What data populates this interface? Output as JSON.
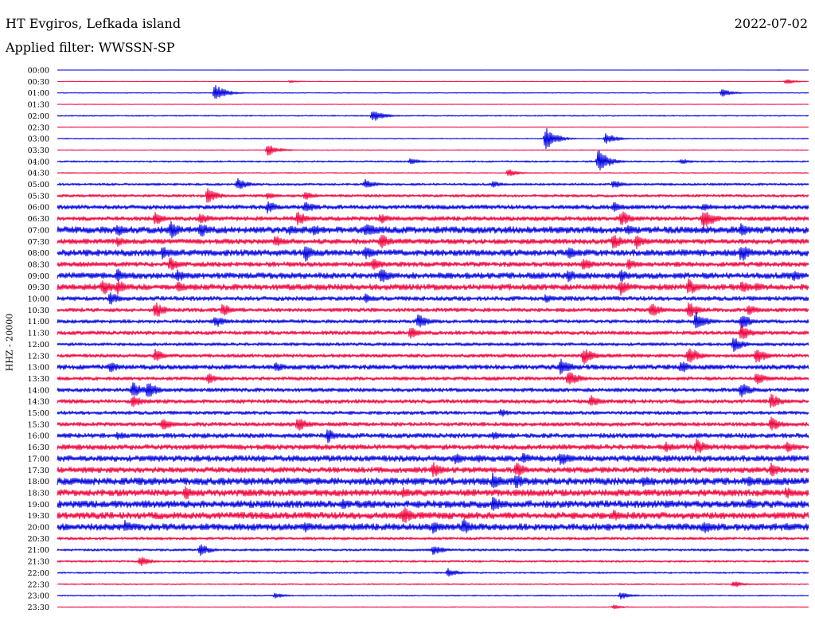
{
  "header": {
    "station": "HT Evgiros, Lefkada island",
    "date": "2022-07-02",
    "filter": "Applied filter: WWSSN-SP"
  },
  "chart_data": {
    "type": "line",
    "channel_label": "HHZ - 20000",
    "row_labels": [
      "00:00",
      "00:30",
      "01:00",
      "01:30",
      "02:00",
      "02:30",
      "03:00",
      "03:30",
      "04:00",
      "04:30",
      "05:00",
      "05:30",
      "06:00",
      "06:30",
      "07:00",
      "07:30",
      "08:00",
      "08:30",
      "09:00",
      "09:30",
      "10:00",
      "10:30",
      "11:00",
      "11:30",
      "12:00",
      "12:30",
      "13:00",
      "13:30",
      "14:00",
      "14:30",
      "15:00",
      "15:30",
      "16:00",
      "16:30",
      "17:00",
      "17:30",
      "18:00",
      "18:30",
      "19:00",
      "19:30",
      "20:00",
      "20:30",
      "21:00",
      "21:30",
      "22:00",
      "22:30",
      "23:00",
      "23:30"
    ],
    "colors": [
      "#0000e0",
      "#f0003c"
    ],
    "grid": false,
    "legend": "none",
    "noise_level": [
      0.2,
      0.2,
      0.4,
      0.2,
      0.6,
      0.3,
      0.5,
      0.4,
      0.8,
      0.5,
      1.2,
      1.4,
      2.2,
      2.2,
      3.4,
      2.6,
      3.2,
      2.4,
      3.0,
      3.0,
      2.2,
      2.0,
      1.8,
      2.0,
      1.6,
      1.8,
      2.4,
      1.8,
      2.0,
      2.0,
      1.8,
      2.0,
      2.4,
      2.6,
      3.0,
      2.8,
      3.6,
      3.4,
      3.6,
      3.4,
      3.4,
      1.4,
      1.2,
      1.0,
      0.8,
      0.6,
      0.6,
      0.4
    ],
    "events": [
      [
        [
          0.96,
          0.2
        ]
      ],
      [
        [
          0.31,
          0.8
        ],
        [
          0.97,
          1.4
        ]
      ],
      [
        [
          0.21,
          4.6
        ],
        [
          0.885,
          2.2
        ]
      ],
      [],
      [
        [
          0.42,
          3.2
        ]
      ],
      [],
      [
        [
          0.65,
          6.0
        ],
        [
          0.73,
          3.0
        ]
      ],
      [
        [
          0.28,
          3.2
        ]
      ],
      [
        [
          0.47,
          1.8
        ],
        [
          0.72,
          6.4
        ],
        [
          0.83,
          1.6
        ]
      ],
      [
        [
          0.6,
          2.0
        ]
      ],
      [
        [
          0.24,
          3.2
        ],
        [
          0.41,
          2.6
        ],
        [
          0.58,
          1.8
        ],
        [
          0.74,
          2.4
        ]
      ],
      [
        [
          0.2,
          4.4
        ],
        [
          0.28,
          2.0
        ],
        [
          0.33,
          2.6
        ]
      ],
      [
        [
          0.28,
          3.6
        ],
        [
          0.33,
          3.4
        ],
        [
          0.74,
          3.0
        ],
        [
          0.86,
          2.8
        ]
      ],
      [
        [
          0.13,
          4.0
        ],
        [
          0.19,
          3.6
        ],
        [
          0.32,
          4.2
        ],
        [
          0.43,
          3.0
        ],
        [
          0.75,
          4.6
        ],
        [
          0.86,
          6.2
        ]
      ],
      [
        [
          0.08,
          3.6
        ],
        [
          0.15,
          5.0
        ],
        [
          0.19,
          4.4
        ],
        [
          0.31,
          3.4
        ],
        [
          0.34,
          3.4
        ],
        [
          0.41,
          4.6
        ],
        [
          0.76,
          3.2
        ],
        [
          0.91,
          3.6
        ]
      ],
      [
        [
          0.08,
          3.0
        ],
        [
          0.29,
          3.4
        ],
        [
          0.43,
          4.6
        ],
        [
          0.74,
          4.2
        ],
        [
          0.77,
          4.4
        ]
      ],
      [
        [
          0.14,
          3.6
        ],
        [
          0.33,
          5.0
        ],
        [
          0.41,
          3.6
        ],
        [
          0.68,
          3.6
        ],
        [
          0.91,
          5.2
        ]
      ],
      [
        [
          0.15,
          4.0
        ],
        [
          0.42,
          4.2
        ],
        [
          0.7,
          3.6
        ],
        [
          0.76,
          3.0
        ]
      ],
      [
        [
          0.08,
          4.0
        ],
        [
          0.16,
          3.6
        ],
        [
          0.43,
          4.4
        ],
        [
          0.68,
          3.6
        ],
        [
          0.75,
          3.6
        ],
        [
          0.98,
          3.2
        ]
      ],
      [
        [
          0.06,
          4.8
        ],
        [
          0.08,
          4.4
        ],
        [
          0.16,
          3.2
        ],
        [
          0.75,
          4.4
        ],
        [
          0.84,
          4.6
        ],
        [
          0.91,
          3.6
        ],
        [
          0.93,
          3.0
        ]
      ],
      [
        [
          0.07,
          3.6
        ],
        [
          0.41,
          2.6
        ],
        [
          0.65,
          2.6
        ]
      ],
      [
        [
          0.13,
          4.8
        ],
        [
          0.22,
          3.6
        ],
        [
          0.79,
          4.4
        ],
        [
          0.84,
          4.6
        ],
        [
          0.92,
          3.2
        ]
      ],
      [
        [
          0.21,
          3.6
        ],
        [
          0.48,
          4.0
        ],
        [
          0.85,
          5.2
        ],
        [
          0.91,
          4.4
        ]
      ],
      [
        [
          0.47,
          3.4
        ],
        [
          0.91,
          4.4
        ]
      ],
      [
        [
          0.9,
          4.0
        ]
      ],
      [
        [
          0.13,
          3.6
        ],
        [
          0.7,
          5.0
        ],
        [
          0.84,
          5.2
        ],
        [
          0.93,
          4.6
        ]
      ],
      [
        [
          0.07,
          3.0
        ],
        [
          0.29,
          2.8
        ],
        [
          0.67,
          4.8
        ],
        [
          0.83,
          3.6
        ]
      ],
      [
        [
          0.2,
          3.0
        ],
        [
          0.68,
          4.6
        ],
        [
          0.93,
          3.6
        ]
      ],
      [
        [
          0.1,
          4.8
        ],
        [
          0.12,
          5.0
        ],
        [
          0.91,
          4.2
        ]
      ],
      [
        [
          0.1,
          3.6
        ],
        [
          0.71,
          3.6
        ],
        [
          0.95,
          4.2
        ]
      ],
      [
        [
          0.59,
          2.4
        ]
      ],
      [
        [
          0.14,
          3.6
        ],
        [
          0.32,
          4.2
        ],
        [
          0.95,
          4.0
        ]
      ],
      [
        [
          0.08,
          2.6
        ],
        [
          0.36,
          4.0
        ],
        [
          0.58,
          2.4
        ]
      ],
      [
        [
          0.81,
          3.0
        ],
        [
          0.85,
          4.6
        ],
        [
          0.97,
          3.2
        ]
      ],
      [
        [
          0.53,
          3.2
        ],
        [
          0.56,
          2.8
        ],
        [
          0.62,
          3.2
        ],
        [
          0.67,
          4.2
        ]
      ],
      [
        [
          0.5,
          4.4
        ],
        [
          0.61,
          4.6
        ],
        [
          0.95,
          4.0
        ]
      ],
      [
        [
          0.58,
          5.2
        ],
        [
          0.61,
          4.2
        ],
        [
          0.78,
          3.2
        ],
        [
          0.92,
          2.8
        ]
      ],
      [
        [
          0.17,
          4.2
        ],
        [
          0.46,
          3.4
        ],
        [
          0.97,
          3.6
        ]
      ],
      [
        [
          0.38,
          3.0
        ],
        [
          0.58,
          4.6
        ],
        [
          0.81,
          3.0
        ],
        [
          0.92,
          3.2
        ]
      ],
      [
        [
          0.46,
          5.2
        ],
        [
          0.74,
          3.2
        ]
      ],
      [
        [
          0.09,
          3.6
        ],
        [
          0.33,
          3.0
        ],
        [
          0.5,
          3.6
        ],
        [
          0.54,
          4.6
        ],
        [
          0.86,
          4.0
        ],
        [
          0.97,
          2.6
        ]
      ],
      [],
      [
        [
          0.19,
          3.4
        ],
        [
          0.5,
          3.0
        ]
      ],
      [
        [
          0.11,
          2.8
        ]
      ],
      [
        [
          0.52,
          2.4
        ]
      ],
      [
        [
          0.9,
          1.8
        ]
      ],
      [
        [
          0.29,
          1.6
        ],
        [
          0.75,
          2.0
        ]
      ],
      [
        [
          0.74,
          1.2
        ]
      ]
    ]
  }
}
